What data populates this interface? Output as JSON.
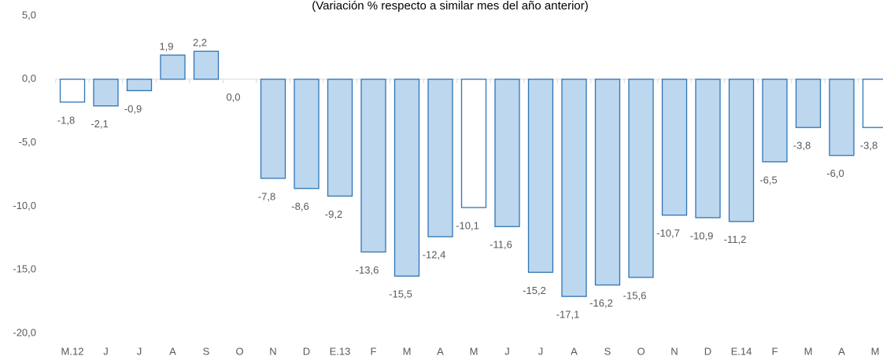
{
  "chart_data": {
    "type": "bar",
    "subtitle": "(Variación % respecto a similar mes del año anterior)",
    "categories": [
      "M.12",
      "J",
      "J",
      "A",
      "S",
      "O",
      "N",
      "D",
      "E.13",
      "F",
      "M",
      "A",
      "M",
      "J",
      "J",
      "A",
      "S",
      "O",
      "N",
      "D",
      "E.14",
      "F",
      "M",
      "A",
      "M"
    ],
    "values": [
      -1.8,
      -2.1,
      -0.9,
      1.9,
      2.2,
      0.0,
      -7.8,
      -8.6,
      -9.2,
      -13.6,
      -15.5,
      -12.4,
      -10.1,
      -11.6,
      -15.2,
      -17.1,
      -16.2,
      -15.6,
      -10.7,
      -10.9,
      -11.2,
      -6.5,
      -3.8,
      -6.0,
      -3.8
    ],
    "value_labels": [
      "-1,8",
      "-2,1",
      "-0,9",
      "1,9",
      "2,2",
      "0,0",
      "-7,8",
      "-8,6",
      "-9,2",
      "-13,6",
      "-15,5",
      "-12,4",
      "-10,1",
      "-11,6",
      "-15,2",
      "-17,1",
      "-16,2",
      "-15,6",
      "-10,7",
      "-10,9",
      "-11,2",
      "-6,5",
      "-3,8",
      "-6,0",
      "-3,8"
    ],
    "colors": [
      "#ffffff",
      "#bdd7ee",
      "#bdd7ee",
      "#bdd7ee",
      "#bdd7ee",
      "#bdd7ee",
      "#bdd7ee",
      "#bdd7ee",
      "#bdd7ee",
      "#bdd7ee",
      "#bdd7ee",
      "#bdd7ee",
      "#ffffff",
      "#bdd7ee",
      "#bdd7ee",
      "#bdd7ee",
      "#bdd7ee",
      "#bdd7ee",
      "#bdd7ee",
      "#bdd7ee",
      "#bdd7ee",
      "#bdd7ee",
      "#bdd7ee",
      "#bdd7ee",
      "#ffffff"
    ],
    "edge_color": "#2e75b6",
    "ylim": [
      -20,
      5
    ],
    "yticks": [
      {
        "value": 5,
        "label": "5,0"
      },
      {
        "value": 0,
        "label": "0,0"
      },
      {
        "value": -5,
        "label": "-5,0"
      },
      {
        "value": -10,
        "label": "-10,0"
      },
      {
        "value": -15,
        "label": "-15,0"
      },
      {
        "value": -20,
        "label": "-20,0"
      }
    ],
    "grid": false
  }
}
